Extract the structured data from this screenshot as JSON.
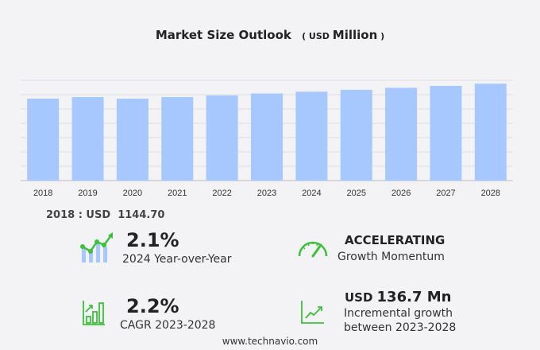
{
  "title": {
    "main": "Market Size Outlook",
    "unit_prefix": "( USD",
    "unit_word": "Million",
    "unit_suffix": ")"
  },
  "chart_data": {
    "type": "bar",
    "title": "Market Size Outlook (USD Million)",
    "categories": [
      "2018",
      "2019",
      "2020",
      "2021",
      "2022",
      "2023",
      "2024",
      "2025",
      "2026",
      "2027",
      "2028"
    ],
    "values": [
      1144.7,
      1166,
      1144,
      1166,
      1189,
      1216,
      1242,
      1268,
      1296,
      1323,
      1353
    ],
    "ylim": [
      0,
      1400
    ],
    "grid": true,
    "bar_color": "#a6c8ff"
  },
  "base_label": "2018 : USD  1144.70",
  "kpis": {
    "yoy": {
      "value": "2.1%",
      "label": "2024 Year-over-Year"
    },
    "momentum": {
      "value": "ACCELERATING",
      "label": "Growth Momentum"
    },
    "cagr": {
      "value": "2.2%",
      "label": "CAGR 2023-2028"
    },
    "incremental": {
      "prefix": "USD",
      "value": "136.7 Mn",
      "label1": "Incremental growth",
      "label2": "between 2023-2028"
    }
  },
  "colors": {
    "accent_green": "#3cc13b",
    "bar": "#a6c8ff"
  },
  "footer": "www.technavio.com"
}
